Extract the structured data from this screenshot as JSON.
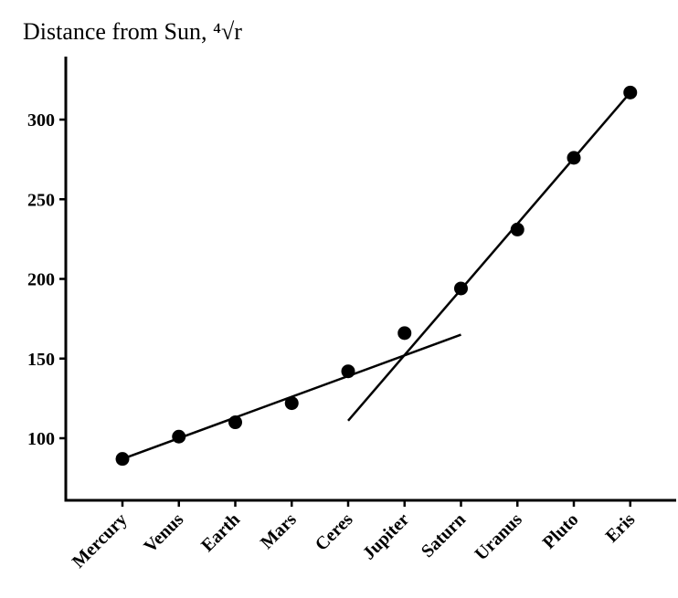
{
  "chart_data": {
    "type": "scatter",
    "title": "Distance from Sun, ⁴√r",
    "xlabel": "",
    "ylabel": "",
    "categories": [
      "Mercury",
      "Venus",
      "Earth",
      "Mars",
      "Ceres",
      "Jupiter",
      "Saturn",
      "Uranus",
      "Pluto",
      "Eris"
    ],
    "series": [
      {
        "values": [
          87,
          101,
          110,
          122,
          142,
          166,
          194,
          231,
          276,
          317
        ]
      }
    ],
    "fit_lines": [
      {
        "from": {
          "x": "Mercury",
          "y": 87
        },
        "to": {
          "x": "Saturn",
          "y": 165
        }
      },
      {
        "from": {
          "x": "Ceres",
          "y": 111
        },
        "to": {
          "x": "Eris",
          "y": 317
        }
      }
    ],
    "ylim": [
      60,
      340
    ],
    "yticks": [
      100,
      150,
      200,
      250,
      300
    ],
    "grid": false,
    "legend": "none",
    "colors": {
      "marker": "#000000",
      "line": "#000000",
      "axis": "#000000"
    }
  }
}
